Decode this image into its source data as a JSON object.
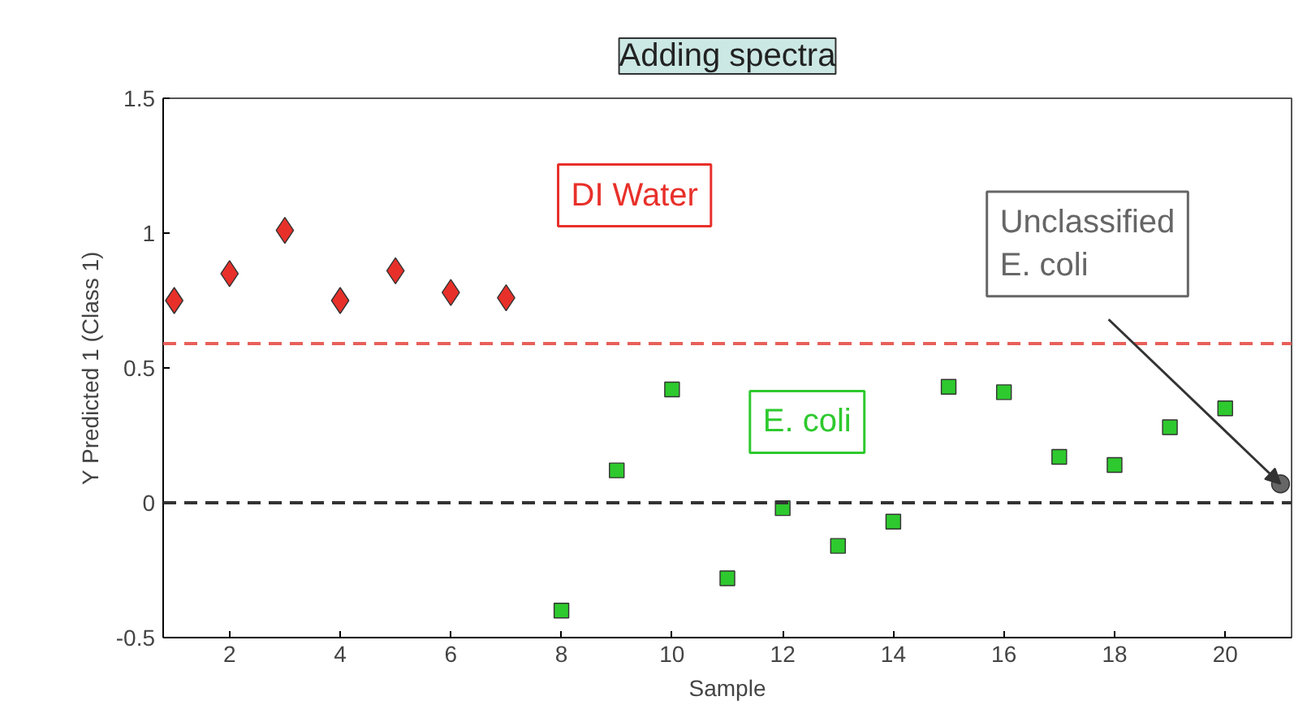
{
  "chart_data": {
    "type": "scatter",
    "xlabel": "Sample",
    "ylabel": "Y Predicted 1 (Class 1)",
    "annotations": [
      "Adding spectra"
    ],
    "xlim": [
      0.8,
      21.2
    ],
    "xticks": [
      2,
      4,
      6,
      8,
      10,
      12,
      14,
      16,
      18,
      20
    ],
    "ylim": [
      -0.5,
      1.5
    ],
    "yticks": [
      -0.5,
      0,
      0.5,
      1,
      1.5
    ],
    "grid": false,
    "series": [
      {
        "name": "DI Water",
        "color": "#e8302a",
        "marker": "diamond",
        "x": [
          1,
          2,
          3,
          4,
          5,
          6,
          7
        ],
        "values": [
          0.75,
          0.85,
          1.01,
          0.75,
          0.86,
          0.78,
          0.76
        ]
      },
      {
        "name": "E. coli",
        "color": "#2ec92e",
        "marker": "square",
        "x": [
          8,
          9,
          10,
          11,
          12,
          13,
          14,
          15,
          16,
          17,
          18,
          19,
          20
        ],
        "values": [
          -0.4,
          0.12,
          0.42,
          -0.28,
          -0.02,
          -0.16,
          -0.07,
          0.43,
          0.41,
          0.17,
          0.14,
          0.28,
          0.35
        ]
      },
      {
        "name": "Unclassified E. coli",
        "color": "#666666",
        "marker": "circle",
        "x": [
          21
        ],
        "values": [
          0.07
        ]
      }
    ],
    "ref_lines": [
      {
        "axis": "y",
        "value": 0.59,
        "color": "#e8605a",
        "line_style": "dashed"
      },
      {
        "axis": "y",
        "value": 0,
        "color": "#333333",
        "line_style": "dashed"
      }
    ]
  }
}
